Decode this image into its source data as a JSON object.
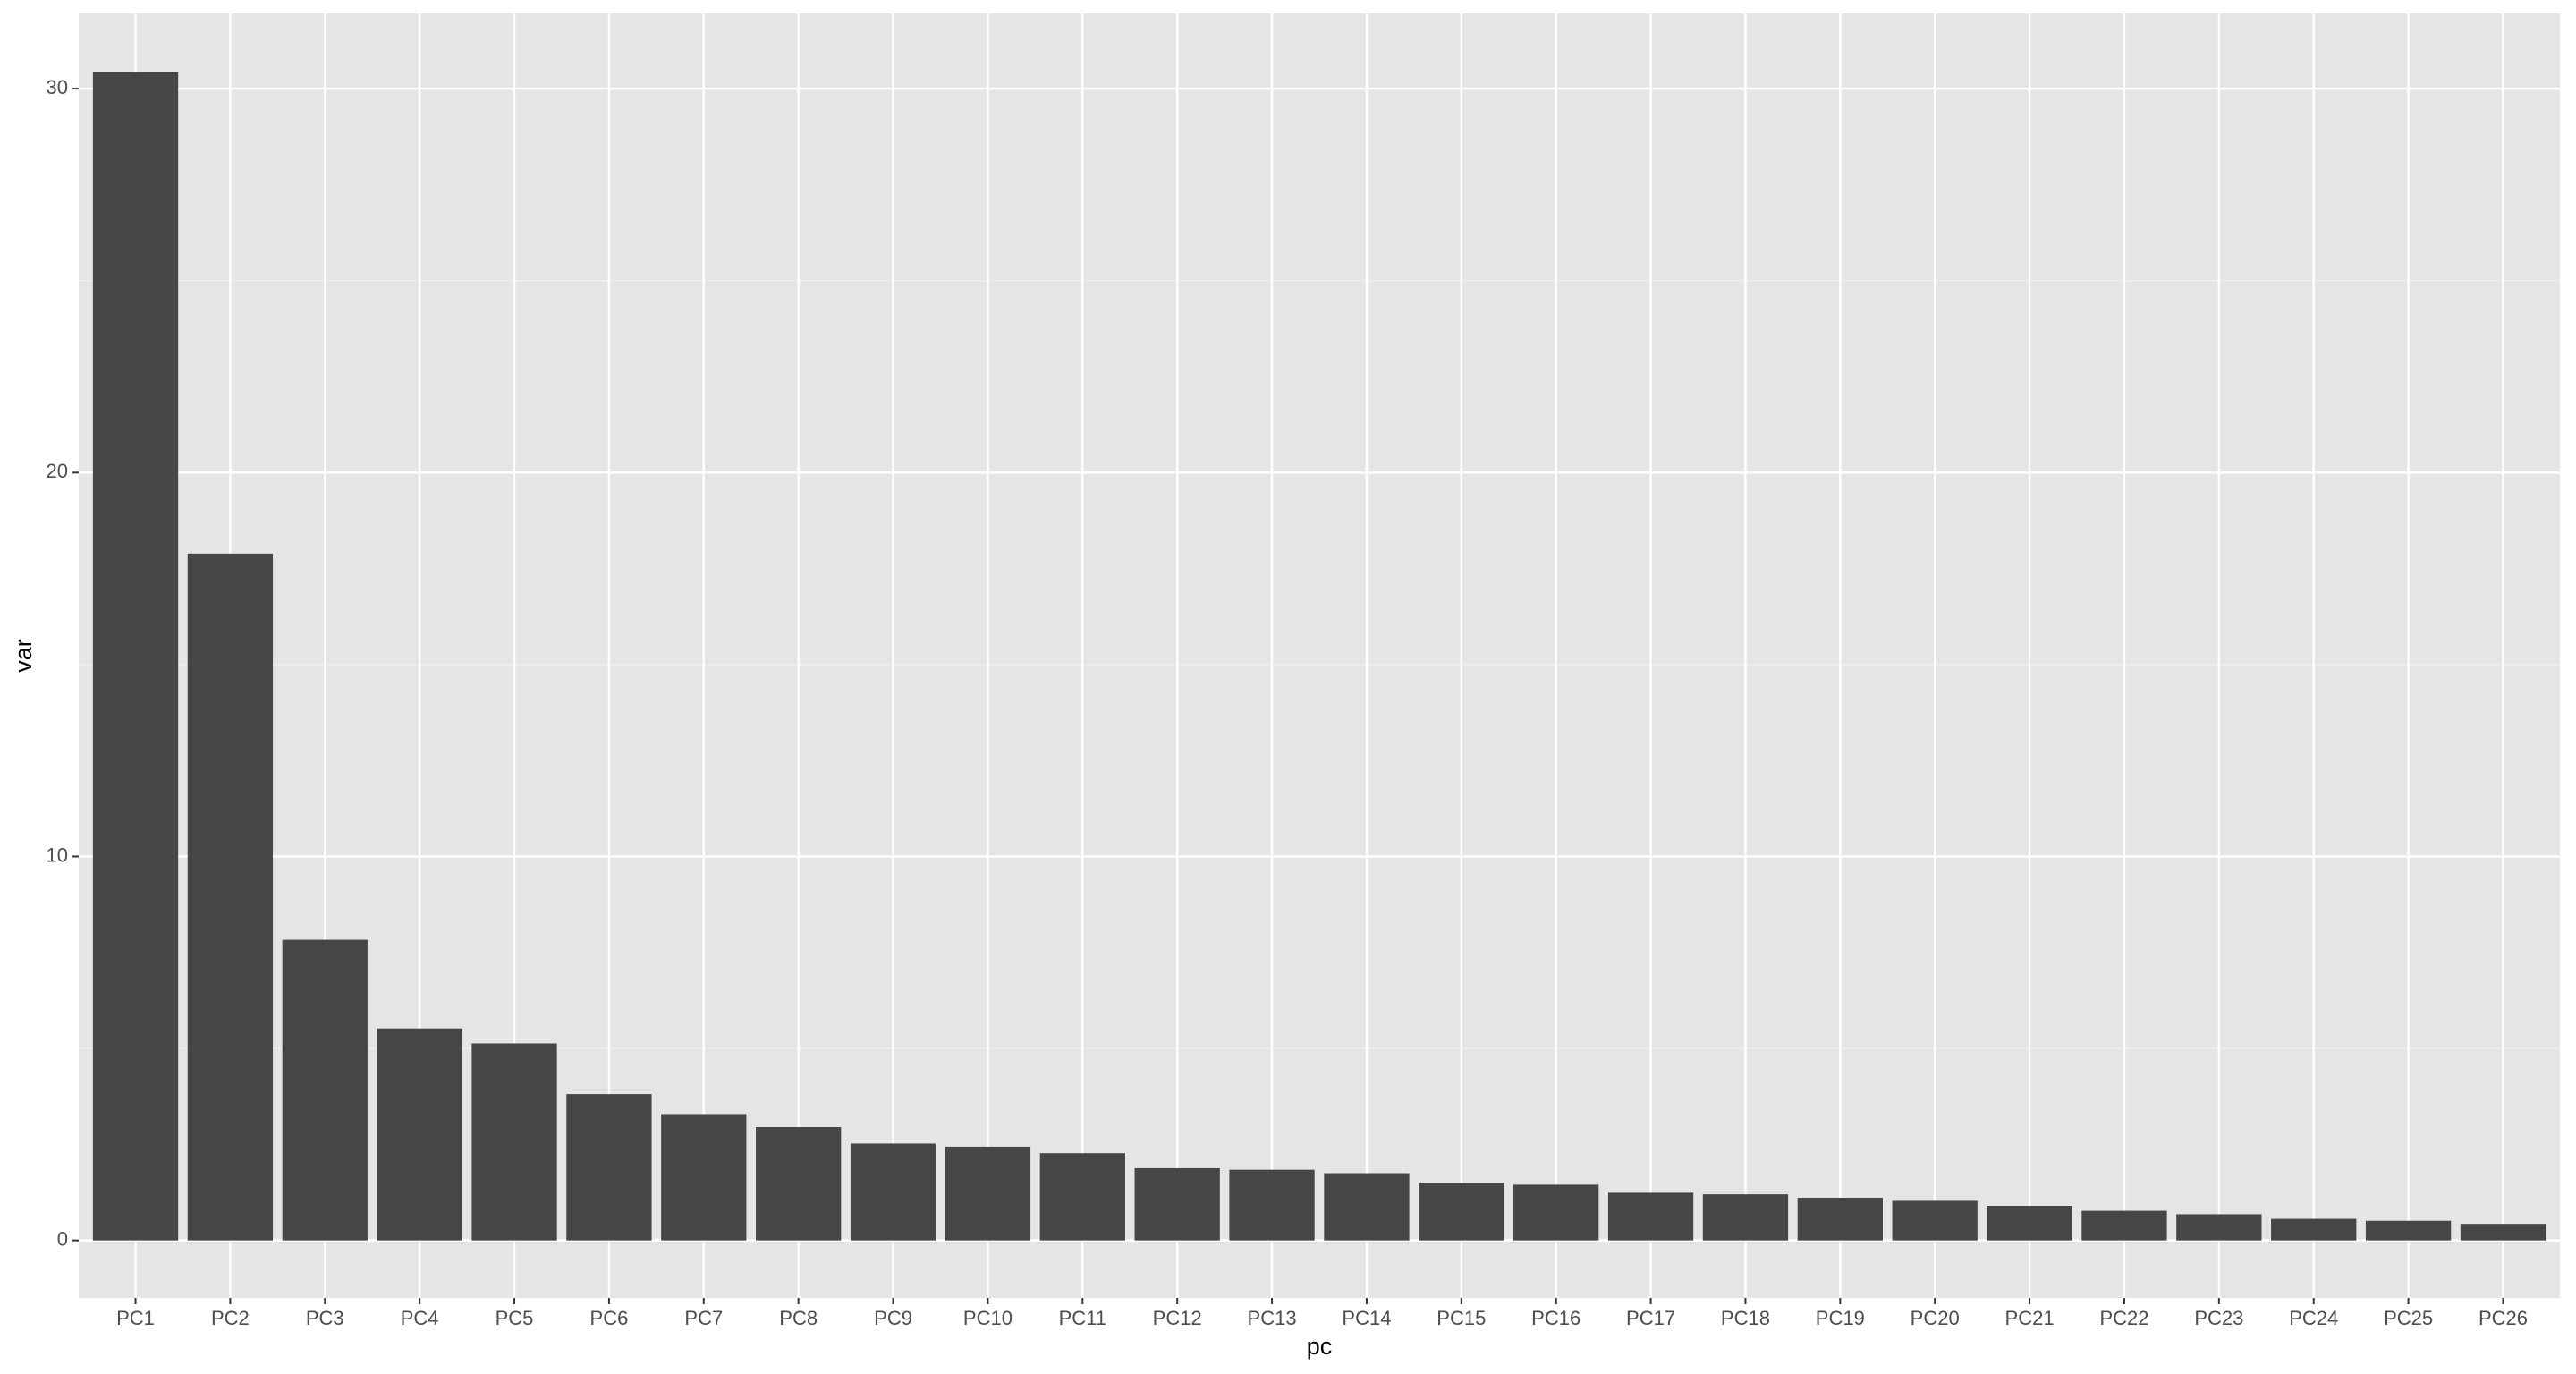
{
  "chart_data": {
    "type": "bar",
    "x_label": "pc",
    "y_label": "var",
    "categories": [
      "PC1",
      "PC2",
      "PC3",
      "PC4",
      "PC5",
      "PC6",
      "PC7",
      "PC8",
      "PC9",
      "PC10",
      "PC11",
      "PC12",
      "PC13",
      "PC14",
      "PC15",
      "PC16",
      "PC17",
      "PC18",
      "PC19",
      "PC20",
      "PC21",
      "PC22",
      "PC23",
      "PC24",
      "PC25",
      "PC26"
    ],
    "values": [
      30.43,
      17.89,
      7.83,
      5.52,
      5.13,
      3.81,
      3.29,
      2.95,
      2.52,
      2.44,
      2.27,
      1.88,
      1.84,
      1.75,
      1.5,
      1.45,
      1.24,
      1.2,
      1.11,
      1.03,
      0.9,
      0.77,
      0.68,
      0.56,
      0.51,
      0.43
    ],
    "color": "#464646",
    "ylim": [
      -1.5,
      31.96
    ],
    "yticks": [
      0,
      10,
      20,
      30
    ],
    "yminorticks": [
      5,
      15,
      25
    ],
    "grid": true
  }
}
